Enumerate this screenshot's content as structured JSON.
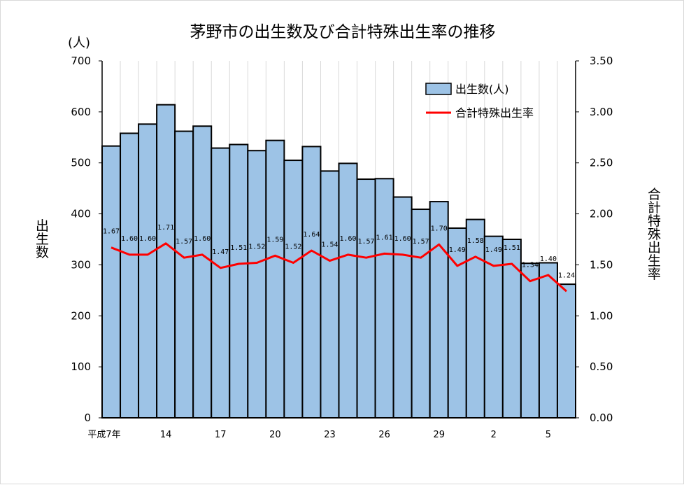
{
  "chart_data": {
    "type": "bar",
    "title": "茅野市の出生数及び合計特殊出生率の推移",
    "left_unit": "(人)",
    "ylabel_left": "出生数",
    "ylabel_right": "合計特殊出生率",
    "ylim_left": [
      0,
      700
    ],
    "ylim_right": [
      0,
      3.5
    ],
    "yticks_left": [
      "0",
      "100",
      "200",
      "300",
      "400",
      "500",
      "600",
      "700"
    ],
    "yticks_right": [
      "0.00",
      "0.50",
      "1.00",
      "1.50",
      "2.00",
      "2.50",
      "3.00",
      "3.50"
    ],
    "x_tick_labels": [
      "平成7年",
      "",
      "",
      "14",
      "",
      "",
      "17",
      "",
      "",
      "20",
      "",
      "",
      "23",
      "",
      "",
      "26",
      "",
      "",
      "29",
      "",
      "",
      "2",
      "",
      "",
      "5",
      ""
    ],
    "series": [
      {
        "name": "出生数(人)",
        "type": "bar",
        "axis": "left",
        "color": "#9dc3e6",
        "values": [
          533,
          558,
          576,
          614,
          562,
          572,
          529,
          536,
          524,
          544,
          505,
          532,
          484,
          499,
          468,
          469,
          433,
          409,
          424,
          372,
          389,
          356,
          350,
          303,
          304,
          262
        ]
      },
      {
        "name": "合計特殊出生率",
        "type": "line",
        "axis": "right",
        "color": "#ff0000",
        "values": [
          1.67,
          1.6,
          1.6,
          1.71,
          1.57,
          1.6,
          1.47,
          1.51,
          1.52,
          1.59,
          1.52,
          1.64,
          1.54,
          1.6,
          1.57,
          1.61,
          1.6,
          1.57,
          1.7,
          1.49,
          1.58,
          1.49,
          1.51,
          1.34,
          1.4,
          1.24
        ],
        "labels": [
          "1.67",
          "1.60",
          "1.60",
          "1.71",
          "1.57",
          "1.60",
          "1.47",
          "1.51",
          "1.52",
          "1.59",
          "1.52",
          "1.64",
          "1.54",
          "1.60",
          "1.57",
          "1.61",
          "1.60",
          "1.57",
          "1.70",
          "1.49",
          "1.58",
          "1.49",
          "1.51",
          "1.34",
          "1.40",
          "1.24"
        ]
      }
    ],
    "grid": "vertical",
    "legend_position": "top-right"
  }
}
